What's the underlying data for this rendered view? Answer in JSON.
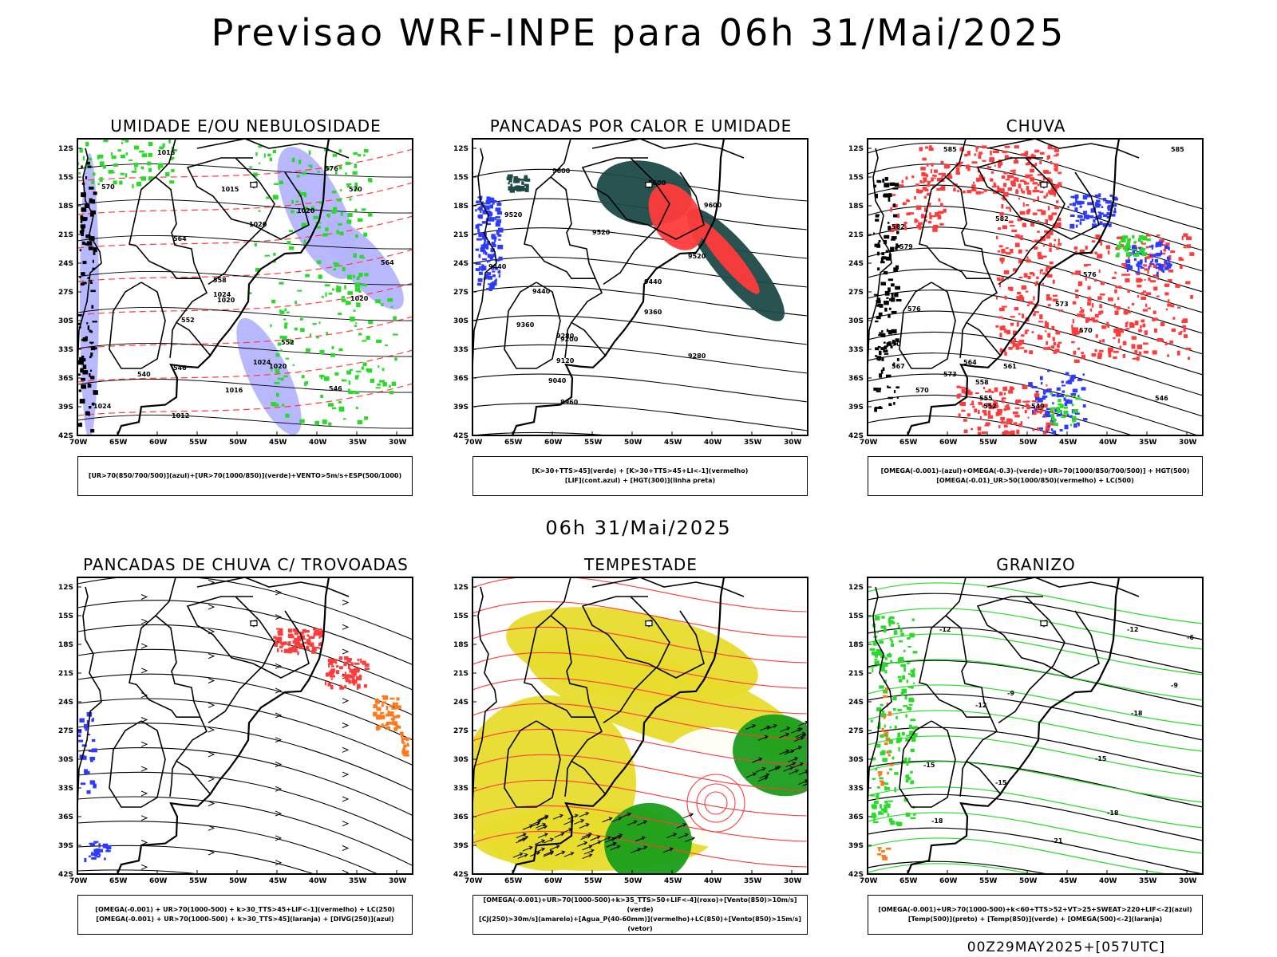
{
  "header": {
    "title": "Previsao WRF-INPE  para 06h 31/Mai/2025",
    "subtitle": "06h 31/Mai/2025",
    "footer": "00Z29MAY2025+[057UTC]"
  },
  "axes": {
    "lat_labels": [
      "12S",
      "15S",
      "18S",
      "21S",
      "24S",
      "27S",
      "30S",
      "33S",
      "36S",
      "39S",
      "42S"
    ],
    "lon_labels": [
      "70W",
      "65W",
      "60W",
      "55W",
      "50W",
      "45W",
      "40W",
      "35W",
      "30W"
    ]
  },
  "colors": {
    "green": "#2bd92b",
    "red": "#ff3b3b",
    "blue": "#2d3bff",
    "lavender": "#b4b4ff",
    "dark_teal": "#1e4a48",
    "yellow": "#e8dc2c",
    "orange": "#ff7a1e",
    "dark_green": "#1a9e1a"
  },
  "panels": [
    {
      "title": "UMIDADE E/OU NEBULOSIDADE",
      "legend": [
        "[UR>70(850/700/500)](azul)+[UR>70(1000/850)](verde)+VENTO>5m/s+ESP(500/1000)"
      ],
      "labels": [
        "1016",
        "1015",
        "1020",
        "1020",
        "1020",
        "1024",
        "1020",
        "1024",
        "1020",
        "1016",
        "1024",
        "1012",
        "570",
        "570",
        "564",
        "558",
        "552",
        "552",
        "546",
        "546",
        "540",
        "564",
        "576"
      ]
    },
    {
      "title": "PANCADAS POR CALOR E UMIDADE",
      "legend": [
        "[K>30+TTS>45](verde) + [K>30+TTS>45+LI<-1](vermelho)",
        "[LIF](cont.azul) + [HGT(300)](linha preta)"
      ],
      "labels": [
        "9600",
        "9600",
        "9520",
        "9520",
        "9520",
        "9440",
        "9440",
        "9440",
        "9360",
        "9360",
        "9280",
        "9280",
        "9200",
        "9120",
        "9040",
        "8960",
        "9600"
      ]
    },
    {
      "title": "CHUVA",
      "legend": [
        "[OMEGA(-0.001)-(azul)+OMEGA(-0.3)-(verde)+UR>70(1000/850/700/500)] + HGT(500)",
        "[OMEGA(-0.01)_UR>50(1000/850)(vermelho) + LC(500)"
      ],
      "labels": [
        "585",
        "585",
        "582",
        "582",
        "579",
        "576",
        "576",
        "573",
        "570",
        "570",
        "567",
        "564",
        "561",
        "558",
        "555",
        "552",
        "549",
        "546",
        "573",
        "570"
      ]
    },
    {
      "title": "PANCADAS DE CHUVA C/ TROVOADAS",
      "legend": [
        "[OMEGA(-0.001) + UR>70(1000-500) + k>30_TTS>45+LIF<-1](vermelho) + LC(250)",
        "[OMEGA(-0.001) + UR>70(1000-500) + k>30_TTS>45](laranja) + [DIVG(250)](azul)"
      ],
      "labels": []
    },
    {
      "title": "TEMPESTADE",
      "legend": [
        "[OMEGA(-0.001)+UR>70(1000-500)+k>35_TTS>50+LIF<-4](roxo)+[Vento(850)>10m/s](verde)",
        "[CJ(250)>30m/s](amarelo)+[Agua_P(40-60mm)](vermelho)+LC(850)+[Vento(850)>15m/s](vetor)"
      ],
      "labels": []
    },
    {
      "title": "GRANIZO",
      "legend": [
        "[OMEGA(-0.001)+UR>70(1000-500)+k<60+TTS>52+VT>25+SWEAT>220+LIF<-2](azul)",
        "[Temp(500)](preto) + [Temp(850)](verde) + [OMEGA(500)<-2](laranja)"
      ],
      "labels": [
        "-15",
        "-12",
        "-12",
        "-9",
        "-6",
        "-18",
        "-15",
        "-15",
        "-21",
        "-18",
        "-12",
        "-9",
        "-18"
      ]
    }
  ]
}
